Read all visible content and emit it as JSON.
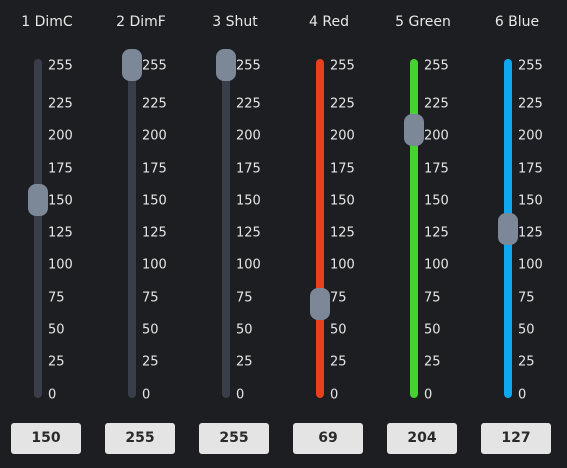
{
  "channels": [
    {
      "label": "1 DimC",
      "value": 150,
      "display": "150",
      "color": "#3a3e4a"
    },
    {
      "label": "2 DimF",
      "value": 255,
      "display": "255",
      "color": "#3a3e4a"
    },
    {
      "label": "3 Shut",
      "value": 255,
      "display": "255",
      "color": "#3a3e4a"
    },
    {
      "label": "4 Red",
      "value": 69,
      "display": "69",
      "color": "#e8401c"
    },
    {
      "label": "5 Green",
      "value": 204,
      "display": "204",
      "color": "#48d232"
    },
    {
      "label": "6 Blue",
      "value": 127,
      "display": "127",
      "color": "#0ea7f0"
    }
  ],
  "scale": {
    "min": 0,
    "max": 255,
    "ticks": [
      255,
      225,
      200,
      175,
      150,
      125,
      100,
      75,
      50,
      25,
      0
    ]
  }
}
